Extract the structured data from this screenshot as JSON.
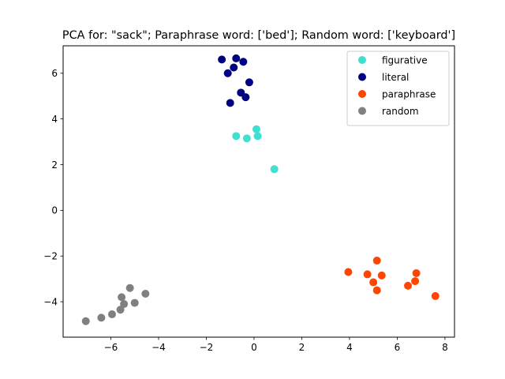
{
  "chart_data": {
    "type": "scatter",
    "title": "PCA for: \"sack\"; Paraphrase word: ['bed']; Random word: ['keyboard']",
    "xlabel": "",
    "ylabel": "",
    "xlim": [
      -8.0,
      8.4
    ],
    "ylim": [
      -5.55,
      7.2
    ],
    "xticks": [
      -6,
      -4,
      -2,
      0,
      2,
      4,
      6,
      8
    ],
    "yticks": [
      -4,
      -2,
      0,
      2,
      4,
      6
    ],
    "xtick_labels": [
      "−6",
      "−4",
      "−2",
      "0",
      "2",
      "4",
      "6",
      "8"
    ],
    "ytick_labels": [
      "−4",
      "−2",
      "0",
      "2",
      "4",
      "6"
    ],
    "grid": false,
    "legend_position": "top-right",
    "series": [
      {
        "name": "figurative",
        "color": "#40e0d0",
        "points": [
          [
            -0.75,
            3.25
          ],
          [
            -0.3,
            3.15
          ],
          [
            0.1,
            3.55
          ],
          [
            0.15,
            3.25
          ],
          [
            0.85,
            1.8
          ]
        ]
      },
      {
        "name": "literal",
        "color": "#000080",
        "points": [
          [
            -1.35,
            6.6
          ],
          [
            -0.75,
            6.65
          ],
          [
            -0.45,
            6.5
          ],
          [
            -0.85,
            6.25
          ],
          [
            -1.1,
            6.0
          ],
          [
            -0.2,
            5.6
          ],
          [
            -0.55,
            5.15
          ],
          [
            -0.35,
            4.95
          ],
          [
            -1.0,
            4.7
          ]
        ]
      },
      {
        "name": "paraphrase",
        "color": "#ff4500",
        "points": [
          [
            3.95,
            -2.7
          ],
          [
            5.15,
            -2.2
          ],
          [
            4.75,
            -2.8
          ],
          [
            5.35,
            -2.85
          ],
          [
            5.0,
            -3.15
          ],
          [
            5.15,
            -3.5
          ],
          [
            6.8,
            -2.75
          ],
          [
            6.75,
            -3.1
          ],
          [
            6.45,
            -3.3
          ],
          [
            7.6,
            -3.75
          ]
        ]
      },
      {
        "name": "random",
        "color": "#808080",
        "points": [
          [
            -5.2,
            -3.4
          ],
          [
            -5.55,
            -3.8
          ],
          [
            -5.45,
            -4.1
          ],
          [
            -5.0,
            -4.05
          ],
          [
            -4.55,
            -3.65
          ],
          [
            -5.6,
            -4.35
          ],
          [
            -5.95,
            -4.55
          ],
          [
            -6.4,
            -4.7
          ],
          [
            -7.05,
            -4.85
          ]
        ]
      }
    ]
  }
}
